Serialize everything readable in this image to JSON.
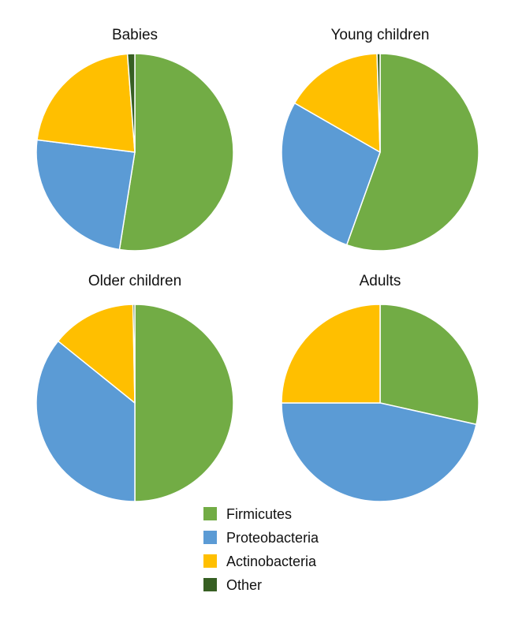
{
  "chart_data": [
    {
      "type": "pie",
      "title": "Babies",
      "categories": [
        "Firmicutes",
        "Proteobacteria",
        "Actinobacteria",
        "Other"
      ],
      "values": [
        52.5,
        24.5,
        21.8,
        1.2
      ]
    },
    {
      "type": "pie",
      "title": "Young children",
      "categories": [
        "Firmicutes",
        "Proteobacteria",
        "Actinobacteria",
        "Other"
      ],
      "values": [
        55.5,
        27.8,
        16.2,
        0.5
      ]
    },
    {
      "type": "pie",
      "title": "Older children",
      "categories": [
        "Firmicutes",
        "Proteobacteria",
        "Actinobacteria",
        "Other"
      ],
      "values": [
        50.0,
        35.8,
        13.9,
        0.3
      ]
    },
    {
      "type": "pie",
      "title": "Adults",
      "categories": [
        "Firmicutes",
        "Proteobacteria",
        "Actinobacteria",
        "Other"
      ],
      "values": [
        28.5,
        46.5,
        25.0,
        0.0
      ]
    }
  ],
  "legend": {
    "placement": "bottom-center",
    "items": [
      {
        "label": "Firmicutes",
        "color": "#72ac45"
      },
      {
        "label": "Proteobacteria",
        "color": "#5b9bd5"
      },
      {
        "label": "Actinobacteria",
        "color": "#ffbf00"
      },
      {
        "label": "Other",
        "color": "#375f23"
      }
    ]
  }
}
